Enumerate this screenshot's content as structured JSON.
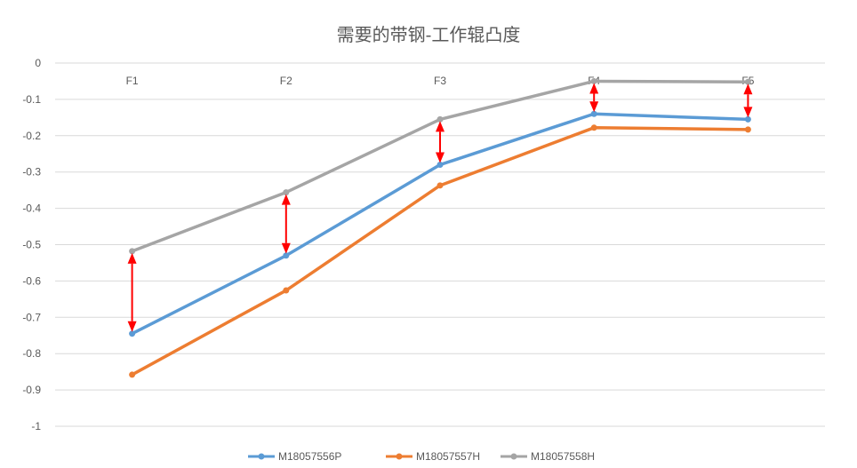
{
  "chart_data": {
    "type": "line",
    "title": "需要的带钢-工作辊凸度",
    "categories": [
      "F1",
      "F2",
      "F3",
      "F4",
      "F5"
    ],
    "y_ticks": [
      "0",
      "-0.1",
      "-0.2",
      "-0.3",
      "-0.4",
      "-0.5",
      "-0.6",
      "-0.7",
      "-0.8",
      "-0.9",
      "-1"
    ],
    "ylim": [
      -1,
      0
    ],
    "grid": true,
    "legend_position": "bottom",
    "series": [
      {
        "name": "M18057556P",
        "color": "#5B9BD5",
        "values": [
          -0.745,
          -0.53,
          -0.28,
          -0.14,
          -0.155
        ]
      },
      {
        "name": "M18057557H",
        "color": "#ED7D31",
        "values": [
          -0.858,
          -0.626,
          -0.337,
          -0.178,
          -0.183
        ]
      },
      {
        "name": "M18057558H",
        "color": "#A5A5A5",
        "values": [
          -0.518,
          -0.356,
          -0.155,
          -0.05,
          -0.052
        ]
      }
    ],
    "annotations": {
      "type": "double-arrows",
      "color": "#FF0000",
      "between": [
        "M18057558H",
        "M18057556P"
      ]
    }
  }
}
